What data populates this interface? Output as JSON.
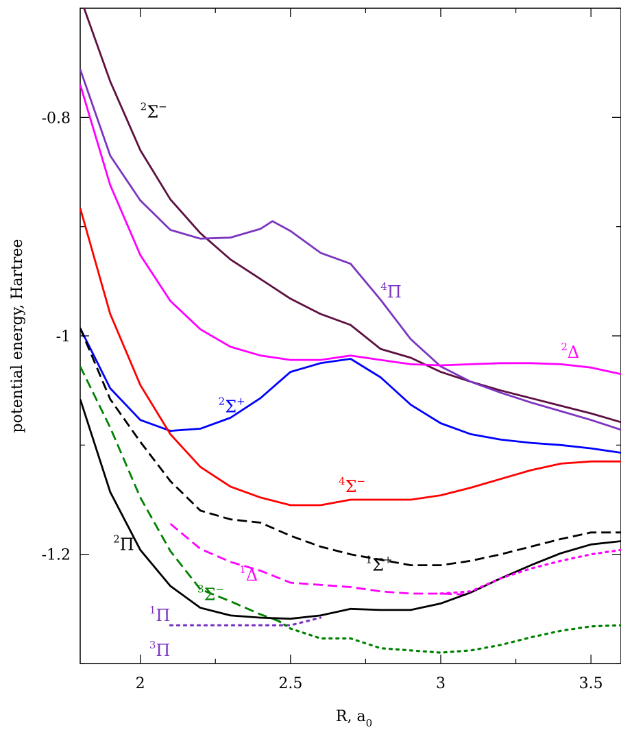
{
  "chart_data": {
    "type": "line",
    "title": "",
    "xlabel": "R, a",
    "xlabel_sub": "0",
    "ylabel": "potential energy, Hartree",
    "xlim": [
      1.8,
      3.6
    ],
    "ylim": [
      -1.3,
      -0.7
    ],
    "x_ticks": [
      {
        "value": 2.0,
        "label": "2"
      },
      {
        "value": 2.5,
        "label": "2.5"
      },
      {
        "value": 3.0,
        "label": "3"
      },
      {
        "value": 3.5,
        "label": "3.5"
      }
    ],
    "y_ticks": [
      {
        "value": -0.8,
        "label": "-0.8"
      },
      {
        "value": -1.0,
        "label": "-1"
      },
      {
        "value": -1.2,
        "label": "-1.2"
      }
    ],
    "grid": false,
    "series": [
      {
        "id": "sigma2minus",
        "color": "#5c1040",
        "dash": "solid",
        "x": [
          1.8,
          1.9,
          2.0,
          2.1,
          2.2,
          2.3,
          2.4,
          2.5,
          2.6,
          2.7,
          2.8,
          2.9,
          3.0,
          3.1,
          3.2,
          3.3,
          3.4,
          3.5,
          3.6
        ],
        "y": [
          -0.69,
          -0.767,
          -0.83,
          -0.875,
          -0.906,
          -0.93,
          -0.948,
          -0.966,
          -0.98,
          -0.99,
          -1.012,
          -1.02,
          -1.033,
          -1.042,
          -1.05,
          -1.057,
          -1.064,
          -1.071,
          -1.079
        ]
      },
      {
        "id": "pi4",
        "color": "#7b35c0",
        "dash": "solid",
        "x": [
          1.8,
          1.9,
          2.0,
          2.1,
          2.2,
          2.3,
          2.4,
          2.44,
          2.5,
          2.6,
          2.7,
          2.8,
          2.9,
          3.0,
          3.1,
          3.2,
          3.3,
          3.4,
          3.5,
          3.6
        ],
        "y": [
          -0.756,
          -0.835,
          -0.876,
          -0.903,
          -0.911,
          -0.91,
          -0.902,
          -0.895,
          -0.904,
          -0.924,
          -0.934,
          -0.967,
          -1.003,
          -1.028,
          -1.042,
          -1.052,
          -1.061,
          -1.069,
          -1.077,
          -1.086
        ]
      },
      {
        "id": "delta2",
        "color": "#ff00ff",
        "dash": "solid",
        "x": [
          1.8,
          1.9,
          2.0,
          2.1,
          2.2,
          2.3,
          2.4,
          2.5,
          2.6,
          2.7,
          2.8,
          2.9,
          3.0,
          3.1,
          3.2,
          3.3,
          3.4,
          3.5,
          3.6
        ],
        "y": [
          -0.77,
          -0.862,
          -0.926,
          -0.968,
          -0.994,
          -1.01,
          -1.018,
          -1.022,
          -1.022,
          -1.018,
          -1.022,
          -1.026,
          -1.027,
          -1.026,
          -1.025,
          -1.025,
          -1.026,
          -1.029,
          -1.035
        ]
      },
      {
        "id": "sigma2plus",
        "color": "#0000ff",
        "dash": "solid",
        "x": [
          1.8,
          1.9,
          2.0,
          2.1,
          2.2,
          2.3,
          2.4,
          2.45,
          2.5,
          2.6,
          2.7,
          2.8,
          2.9,
          3.0,
          3.1,
          3.2,
          3.3,
          3.4,
          3.5,
          3.6
        ],
        "y": [
          -0.993,
          -1.048,
          -1.077,
          -1.087,
          -1.085,
          -1.075,
          -1.057,
          -1.045,
          -1.033,
          -1.025,
          -1.021,
          -1.038,
          -1.063,
          -1.08,
          -1.09,
          -1.095,
          -1.098,
          -1.1,
          -1.103,
          -1.107
        ]
      },
      {
        "id": "sigma4minus",
        "color": "#ff0000",
        "dash": "solid",
        "x": [
          1.8,
          1.9,
          2.0,
          2.1,
          2.2,
          2.3,
          2.4,
          2.5,
          2.6,
          2.7,
          2.8,
          2.9,
          3.0,
          3.1,
          3.2,
          3.3,
          3.4,
          3.5,
          3.6
        ],
        "y": [
          -0.883,
          -0.98,
          -1.045,
          -1.09,
          -1.12,
          -1.138,
          -1.148,
          -1.155,
          -1.155,
          -1.15,
          -1.15,
          -1.15,
          -1.146,
          -1.139,
          -1.131,
          -1.123,
          -1.117,
          -1.115,
          -1.115
        ]
      },
      {
        "id": "sigma1plus",
        "color": "#000000",
        "dash": "dashed",
        "x": [
          1.8,
          1.9,
          2.0,
          2.1,
          2.2,
          2.3,
          2.4,
          2.5,
          2.6,
          2.7,
          2.8,
          2.9,
          3.0,
          3.1,
          3.2,
          3.3,
          3.4,
          3.5,
          3.6
        ],
        "y": [
          -0.993,
          -1.058,
          -1.097,
          -1.133,
          -1.16,
          -1.168,
          -1.171,
          -1.183,
          -1.193,
          -1.2,
          -1.205,
          -1.21,
          -1.21,
          -1.206,
          -1.2,
          -1.193,
          -1.186,
          -1.18,
          -1.18
        ]
      },
      {
        "id": "delta1",
        "color": "#ff00ff",
        "dash": "dashed",
        "x": [
          2.1,
          2.2,
          2.3,
          2.4,
          2.5,
          2.6,
          2.7,
          2.8,
          2.9,
          3.0,
          3.1
        ],
        "y": [
          -1.172,
          -1.195,
          -1.207,
          -1.215,
          -1.226,
          -1.228,
          -1.23,
          -1.234,
          -1.236,
          -1.236,
          -1.237
        ]
      },
      {
        "id": "sigma3minus",
        "color": "#008000",
        "dash": "dashed",
        "x": [
          1.8,
          1.9,
          2.0,
          2.1,
          2.2,
          2.3,
          2.4,
          2.46
        ],
        "y": [
          -1.028,
          -1.084,
          -1.148,
          -1.197,
          -1.232,
          -1.243,
          -1.255,
          -1.261
        ]
      },
      {
        "id": "pi2",
        "color": "#000000",
        "dash": "solid",
        "x": [
          1.8,
          1.9,
          2.0,
          2.1,
          2.2,
          2.3,
          2.4,
          2.5,
          2.6,
          2.7,
          2.8,
          2.9,
          3.0,
          3.1,
          3.2,
          3.3,
          3.4,
          3.5,
          3.6
        ],
        "y": [
          -1.058,
          -1.143,
          -1.196,
          -1.229,
          -1.249,
          -1.256,
          -1.258,
          -1.259,
          -1.256,
          -1.25,
          -1.251,
          -1.251,
          -1.245,
          -1.235,
          -1.222,
          -1.21,
          -1.199,
          -1.191,
          -1.188
        ]
      },
      {
        "id": "pi1",
        "color": "#7b35c0",
        "dash": "dotted",
        "x": [
          2.1,
          2.2,
          2.3,
          2.4,
          2.5,
          2.6
        ],
        "y": [
          -1.265,
          -1.265,
          -1.265,
          -1.265,
          -1.265,
          -1.258
        ]
      },
      {
        "id": "pi3",
        "color": "#ff00ff",
        "dash": "dotted",
        "x": [
          3.0,
          3.1,
          3.2,
          3.3,
          3.4,
          3.5,
          3.6
        ],
        "y": [
          -1.236,
          -1.234,
          -1.222,
          -1.213,
          -1.206,
          -1.2,
          -1.196
        ]
      },
      {
        "id": "sigma3minus_ext",
        "color": "#008000",
        "dash": "dotted",
        "x": [
          2.46,
          2.5,
          2.6,
          2.7,
          2.8,
          2.9,
          3.0,
          3.1,
          3.2,
          3.3,
          3.4,
          3.5,
          3.6
        ],
        "y": [
          -1.261,
          -1.268,
          -1.277,
          -1.277,
          -1.286,
          -1.288,
          -1.29,
          -1.288,
          -1.283,
          -1.276,
          -1.27,
          -1.266,
          -1.265
        ]
      }
    ],
    "annotations": [
      {
        "sup": "2",
        "text": "Σ",
        "sup2": "−",
        "color": "#000000",
        "x": 2.0,
        "y": -0.8
      },
      {
        "sup": "4",
        "text": "Π",
        "color": "#7b35c0",
        "x": 2.8,
        "y": -0.965
      },
      {
        "sup": "2",
        "text": "Δ",
        "color": "#ff00ff",
        "x": 3.4,
        "y": -1.02
      },
      {
        "sup": "2",
        "text": "Σ",
        "sup2": "+",
        "color": "#0000ff",
        "x": 2.26,
        "y": -1.07
      },
      {
        "sup": "4",
        "text": "Σ",
        "sup2": "−",
        "color": "#ff0000",
        "x": 2.66,
        "y": -1.143
      },
      {
        "sup": "1",
        "text": "Σ",
        "sup2": "+",
        "color": "#000000",
        "x": 2.75,
        "y": -1.215
      },
      {
        "sup": "2",
        "text": "Π",
        "color": "#000000",
        "x": 1.91,
        "y": -1.196
      },
      {
        "sup": "1",
        "text": "Δ",
        "color": "#ff00ff",
        "x": 2.33,
        "y": -1.224
      },
      {
        "sup": "3",
        "text": "Σ",
        "sup2": "−",
        "color": "#008000",
        "x": 2.19,
        "y": -1.242
      },
      {
        "sup": "1",
        "text": "Π",
        "color": "#7b35c0",
        "x": 2.03,
        "y": -1.261
      },
      {
        "sup": "3",
        "text": "Π",
        "color": "#7b35c0",
        "x": 2.03,
        "y": -1.293
      }
    ]
  }
}
